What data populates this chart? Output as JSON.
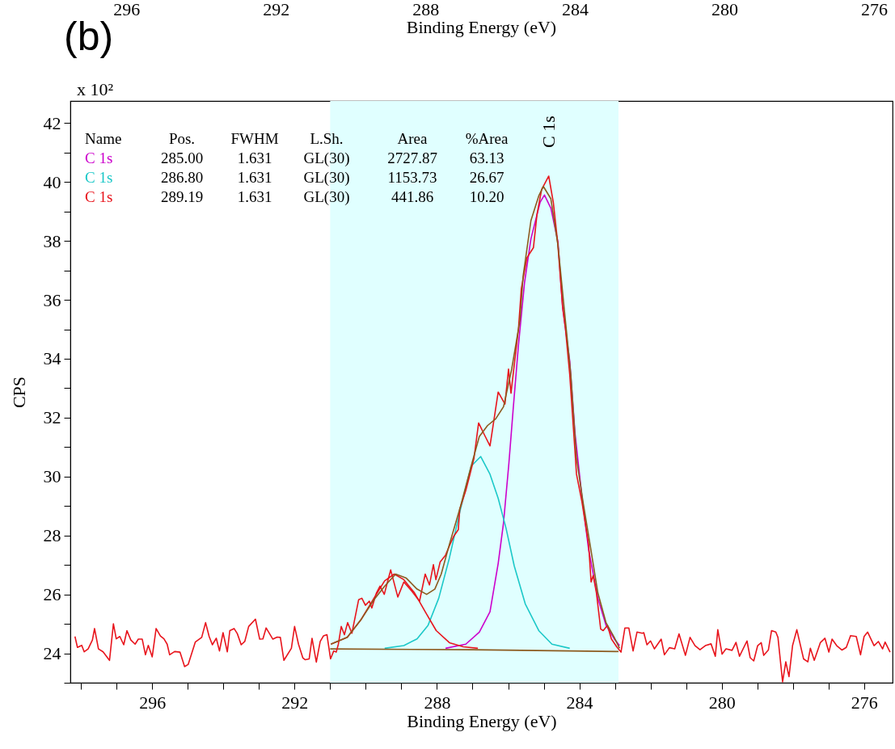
{
  "chart_data": {
    "type": "line",
    "title": "(b)",
    "xlabel": "Binding Energy (eV)",
    "ylabel": "CPS",
    "x2label": "Binding Energy (eV)",
    "xlim": [
      298.3,
      275.2
    ],
    "ylim": [
      23.0,
      42.75
    ],
    "x2lim": [
      297.5,
      275.5
    ],
    "xticks": [
      {
        "value": 298,
        "label": null
      },
      {
        "value": 297,
        "label": null
      },
      296,
      {
        "value": 295,
        "label": null
      },
      {
        "value": 294,
        "label": null
      },
      {
        "value": 293,
        "label": null
      },
      292,
      {
        "value": 291,
        "label": null
      },
      {
        "value": 290,
        "label": null
      },
      {
        "value": 289,
        "label": null
      },
      288,
      {
        "value": 287,
        "label": null
      },
      {
        "value": 286,
        "label": null
      },
      {
        "value": 285,
        "label": null
      },
      284,
      {
        "value": 283,
        "label": null
      },
      {
        "value": 282,
        "label": null
      },
      {
        "value": 281,
        "label": null
      },
      280,
      {
        "value": 279,
        "label": null
      },
      {
        "value": 278,
        "label": null
      },
      {
        "value": 277,
        "label": null
      },
      276
    ],
    "yticks": [
      {
        "value": 23,
        "label": null
      },
      24,
      {
        "value": 25,
        "label": null
      },
      26,
      {
        "value": 27,
        "label": null
      },
      28,
      {
        "value": 29,
        "label": null
      },
      30,
      {
        "value": 31,
        "label": null
      },
      32,
      {
        "value": 33,
        "label": null
      },
      34,
      {
        "value": 35,
        "label": null
      },
      36,
      {
        "value": 37,
        "label": null
      },
      38,
      {
        "value": 39,
        "label": null
      },
      40,
      {
        "value": 41,
        "label": null
      },
      42
    ],
    "x2ticks": [
      296,
      292,
      288,
      284,
      280,
      276
    ],
    "grid": false,
    "marker": "none",
    "line_style": "solid",
    "bands": [
      {
        "axis": "x",
        "from": 291.0,
        "to": 282.9,
        "color": "#e0ffff"
      }
    ],
    "series": [
      {
        "color": "#cc00cc",
        "x": [
          287.76,
          287.19,
          286.81,
          286.51,
          286.28,
          286.13,
          285.98,
          285.86,
          285.71,
          285.54,
          285.36,
          285.1,
          284.98,
          284.8,
          284.6,
          284.47,
          284.27,
          284.12,
          283.93,
          283.74,
          283.48,
          283.25,
          283.02,
          282.87
        ],
        "values": [
          24.17,
          24.31,
          24.72,
          25.41,
          27.05,
          28.43,
          30.44,
          32.27,
          34.47,
          36.58,
          38.07,
          39.32,
          39.56,
          39.11,
          37.96,
          35.76,
          33.92,
          31.45,
          29.35,
          27.52,
          25.87,
          24.95,
          24.49,
          24.26
        ]
      },
      {
        "color": "#1cc8c8",
        "x": [
          289.47,
          288.93,
          288.56,
          288.25,
          287.95,
          287.65,
          287.34,
          287.04,
          286.77,
          286.51,
          286.28,
          286.06,
          285.83,
          285.52,
          285.14,
          284.77,
          284.27
        ],
        "values": [
          24.17,
          24.26,
          24.49,
          24.95,
          25.87,
          27.24,
          28.89,
          30.35,
          30.68,
          30.08,
          29.26,
          28.25,
          26.97,
          25.68,
          24.77,
          24.31,
          24.17
        ]
      },
      {
        "color": "#e8141c",
        "x": [
          290.98,
          290.52,
          290.14,
          289.77,
          289.47,
          289.2,
          288.93,
          288.63,
          288.33,
          288.02,
          287.65,
          287.26,
          286.85
        ],
        "values": [
          24.31,
          24.54,
          25.13,
          25.87,
          26.46,
          26.69,
          26.5,
          26.05,
          25.41,
          24.77,
          24.36,
          24.22,
          24.17
        ]
      },
      {
        "color": "#8c5a1e",
        "x": [
          291.0,
          287.0,
          282.9
        ],
        "values": [
          24.15,
          24.12,
          24.06
        ]
      },
      {
        "color": "#e8141c",
        "x": [
          298.17,
          298.1,
          297.98,
          297.91,
          297.8,
          297.68,
          297.62,
          297.51,
          297.38,
          297.2,
          297.09,
          297.01,
          296.91,
          296.8,
          296.71,
          296.6,
          296.48,
          296.39,
          296.28,
          296.19,
          296.11,
          296.0,
          295.89,
          295.77,
          295.67,
          295.58,
          295.51,
          295.37,
          295.22,
          295.09,
          294.99,
          294.79,
          294.61,
          294.5,
          294.4,
          294.31,
          294.2,
          294.11,
          294.01,
          293.89,
          293.82,
          293.7,
          293.61,
          293.5,
          293.4,
          293.29,
          293.1,
          292.98,
          292.89,
          292.8,
          292.61,
          292.49,
          292.4,
          292.3,
          292.09,
          292.0,
          291.89,
          291.77,
          291.7,
          291.59,
          291.51,
          291.39,
          291.28,
          291.19,
          291.09,
          290.99,
          290.9,
          290.83,
          290.77,
          290.69,
          290.6,
          290.51,
          290.39,
          290.2,
          290.11,
          290.01,
          289.9,
          289.83,
          289.7,
          289.6,
          289.48,
          289.39,
          289.3,
          289.1,
          288.93,
          288.7,
          288.49,
          288.33,
          288.21,
          288.1,
          288.03,
          287.91,
          287.76,
          287.65,
          287.53,
          287.4,
          287.36,
          287.19,
          287.11,
          286.96,
          286.83,
          286.66,
          286.51,
          286.28,
          286.09,
          285.99,
          285.92,
          285.86,
          285.71,
          285.63,
          285.47,
          285.29,
          285.19,
          285.06,
          284.86,
          284.73,
          284.61,
          284.47,
          284.39,
          284.27,
          284.12,
          284.08,
          283.93,
          283.74,
          283.67,
          283.61,
          283.52,
          283.4,
          283.33,
          283.21,
          283.1,
          282.95,
          282.83,
          282.72,
          282.61,
          282.49,
          282.38,
          282.23,
          282.19,
          282.1,
          282.0,
          281.89,
          281.7,
          281.61,
          281.47,
          281.32,
          281.2,
          281.02,
          280.89,
          280.75,
          280.61,
          280.46,
          280.3,
          280.18,
          280.11,
          279.99,
          279.88,
          279.71,
          279.6,
          279.5,
          279.29,
          279.2,
          279.1,
          278.99,
          278.89,
          278.82,
          278.69,
          278.6,
          278.48,
          278.42,
          278.29,
          278.2,
          278.11,
          278.01,
          277.89,
          277.7,
          277.58,
          277.51,
          277.4,
          277.23,
          277.1,
          276.99,
          276.9,
          276.77,
          276.62,
          276.5,
          276.38,
          276.22,
          276.1,
          276.0,
          275.9,
          275.72,
          275.6,
          275.48,
          275.41,
          275.27
        ],
        "values": [
          24.57,
          24.2,
          24.27,
          24.05,
          24.15,
          24.45,
          24.84,
          24.15,
          24.05,
          23.76,
          25.0,
          24.49,
          24.57,
          24.29,
          24.77,
          24.45,
          24.31,
          24.48,
          24.48,
          23.95,
          24.27,
          23.88,
          24.84,
          24.59,
          24.49,
          24.31,
          23.95,
          24.06,
          24.04,
          23.55,
          23.62,
          24.38,
          24.54,
          25.04,
          24.57,
          24.29,
          24.51,
          24.08,
          24.7,
          24.05,
          24.77,
          24.84,
          24.67,
          24.29,
          24.4,
          24.91,
          25.16,
          24.48,
          24.49,
          24.86,
          24.48,
          24.55,
          24.54,
          23.76,
          24.17,
          24.91,
          24.31,
          23.85,
          23.78,
          23.81,
          24.51,
          23.7,
          24.4,
          24.59,
          24.63,
          23.81,
          24.08,
          24.04,
          24.31,
          24.91,
          24.63,
          25.04,
          24.68,
          25.82,
          25.87,
          25.63,
          25.77,
          25.54,
          26.05,
          26.28,
          26.0,
          26.42,
          26.83,
          25.91,
          26.42,
          26.1,
          25.77,
          26.69,
          26.32,
          27.01,
          26.5,
          27.1,
          27.33,
          27.65,
          27.97,
          28.2,
          28.89,
          29.53,
          29.9,
          30.62,
          31.82,
          31.4,
          31.04,
          32.87,
          32.46,
          33.65,
          32.83,
          33.46,
          35.02,
          36.38,
          37.43,
          37.77,
          38.9,
          39.74,
          40.2,
          39.3,
          37.96,
          35.76,
          35.02,
          33.46,
          30.81,
          30.08,
          29.16,
          27.7,
          26.42,
          26.64,
          26.05,
          24.82,
          24.77,
          24.95,
          24.49,
          24.22,
          24.04,
          24.86,
          24.86,
          24.08,
          24.72,
          24.68,
          24.7,
          24.29,
          24.42,
          24.15,
          24.48,
          23.95,
          24.19,
          24.15,
          24.66,
          23.93,
          24.54,
          24.26,
          24.12,
          24.26,
          24.32,
          23.9,
          24.8,
          23.97,
          24.15,
          24.1,
          24.37,
          23.9,
          24.42,
          23.85,
          23.74,
          24.26,
          24.36,
          23.93,
          24.11,
          24.77,
          24.72,
          24.54,
          23.03,
          23.71,
          23.21,
          24.26,
          24.8,
          23.81,
          23.71,
          24.17,
          23.76,
          24.36,
          24.51,
          24.04,
          24.48,
          24.26,
          24.11,
          24.2,
          24.6,
          24.57,
          23.95,
          24.57,
          24.72,
          24.26,
          24.4,
          24.15,
          24.38,
          24.04
        ]
      },
      {
        "color": "#8c5a1e",
        "x": [
          290.98,
          290.52,
          290.14,
          289.77,
          289.47,
          289.16,
          288.86,
          288.56,
          288.29,
          288.06,
          287.88,
          287.65,
          287.34,
          287.04,
          286.81,
          286.58,
          286.35,
          286.13,
          285.9,
          285.67,
          285.58,
          285.36,
          285.14,
          285.01,
          284.8,
          284.6,
          284.43,
          284.24,
          284.08,
          283.9,
          283.7,
          283.48,
          283.25,
          283.02,
          282.87
        ],
        "values": [
          24.31,
          24.54,
          25.13,
          25.82,
          26.28,
          26.69,
          26.55,
          26.18,
          26.0,
          26.18,
          26.69,
          27.7,
          28.98,
          30.35,
          31.36,
          31.73,
          31.96,
          32.37,
          33.65,
          35.3,
          36.8,
          38.69,
          39.53,
          39.85,
          39.43,
          37.85,
          35.76,
          33.46,
          30.63,
          29.16,
          27.7,
          26.05,
          25.04,
          24.54,
          24.17
        ]
      }
    ],
    "annotations": [
      "x 10²",
      "Name",
      "Pos.",
      "FWHM",
      "L.Sh.",
      "Area",
      "%Area",
      "C 1s",
      "285.00",
      "1.631",
      "GL(30)",
      "2727.87",
      "63.13",
      "C 1s",
      "286.80",
      "1.631",
      "GL(30)",
      "1153.73",
      "26.67",
      "C 1s",
      "289.19",
      "1.631",
      "GL(30)",
      "441.86",
      "10.20",
      "C 1s"
    ]
  }
}
